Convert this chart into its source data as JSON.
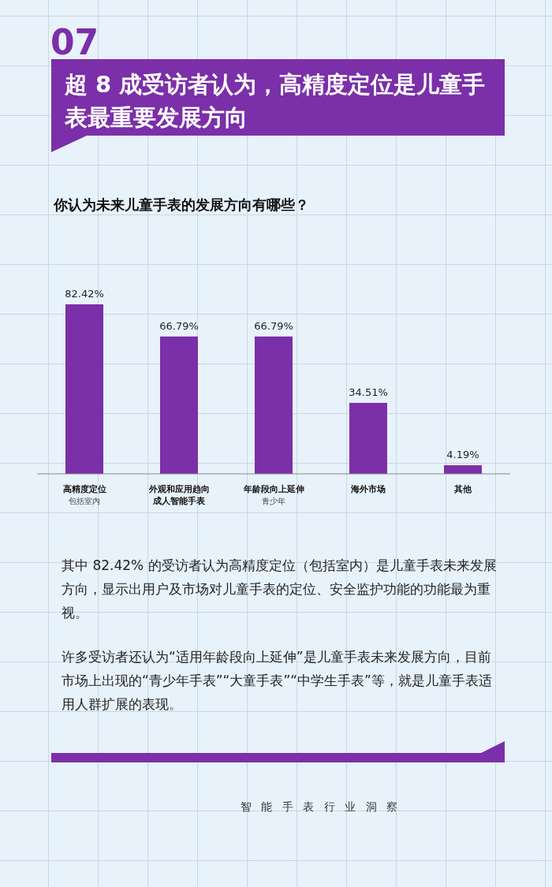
{
  "chart_data": {
    "type": "bar",
    "title": "超 8 成受访者认为，高精度定位是儿童手表最重要发展方向",
    "subtitle": "你认为未来儿童手表的发展方向有哪些？",
    "categories": [
      "高精度定位",
      "外观和应用趋向成人智能手表",
      "年龄段向上延伸",
      "海外市场",
      "其他"
    ],
    "values": [
      82.42,
      66.79,
      66.79,
      34.51,
      4.19
    ],
    "value_labels": [
      "82.42%",
      "66.79%",
      "66.79%",
      "34.51%",
      "4.19%"
    ],
    "color": "#7b2fa8",
    "annotations": [
      "07",
      "其中 82.42% 的受访者认为高精度定位（包括室内）是儿童手表未来发展方向，显示出用户及市场对儿童手表的定位、安全监护功能的功能最为重视。",
      "许多受访者还认为“适用年龄段向上延伸”是儿童手表未来发展方向，目前市场上出现的“青少年手表”“大童手表”“中学生手表”等，就是儿童手表适用人群扩展的表现。",
      "智 能 手 表 行 业 洞 察",
      "包括室内",
      "青少年"
    ]
  }
}
